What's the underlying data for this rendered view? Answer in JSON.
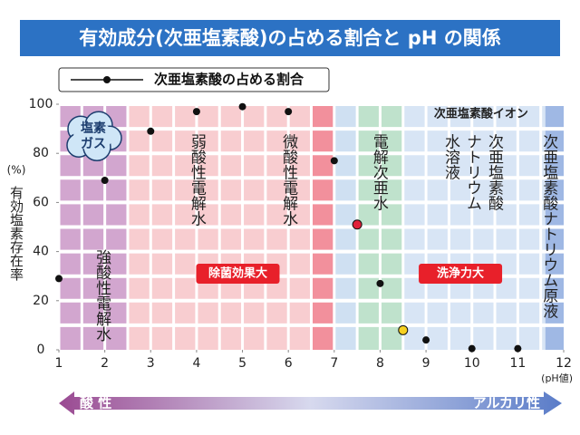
{
  "chart_data": {
    "type": "line",
    "title": "有効成分(次亜塩素酸)の占める割合と pH の関係",
    "legend": "次亜塩素酸の占める割合",
    "x_unit": "(pH値)",
    "y_unit": "(%)",
    "y_label": "有効塩素存在率",
    "xlim": [
      1,
      12
    ],
    "xticks": [
      1,
      2,
      3,
      4,
      5,
      6,
      7,
      8,
      9,
      10,
      11,
      12
    ],
    "ylim": [
      0,
      100
    ],
    "yticks": [
      0,
      20,
      40,
      60,
      80,
      100
    ],
    "series": [
      {
        "name": "次亜塩素酸の占める割合",
        "color": "#111111",
        "x": [
          1,
          2,
          3,
          4,
          5,
          6,
          7,
          7.5,
          8,
          8.5,
          9,
          10,
          11
        ],
        "values": [
          29,
          69,
          89,
          97,
          99,
          97,
          77,
          51,
          27,
          8,
          4,
          0.5,
          0.5
        ],
        "marker_colors": [
          "#111111",
          "#111111",
          "#111111",
          "#111111",
          "#111111",
          "#111111",
          "#111111",
          "#e0203a",
          "#111111",
          "#f5d020",
          "#111111",
          "#111111",
          "#111111"
        ]
      }
    ],
    "bands": [
      {
        "from": 1,
        "to": 2.5,
        "color": "#d2a6cf"
      },
      {
        "from": 2.5,
        "to": 6.5,
        "color": "#f8cdd0"
      },
      {
        "from": 6.5,
        "to": 7,
        "color": "#f2909c"
      },
      {
        "from": 7,
        "to": 7.5,
        "color": "#cfe0f2"
      },
      {
        "from": 7.5,
        "to": 8.5,
        "color": "#bfe2cc"
      },
      {
        "from": 8.5,
        "to": 11.6,
        "color": "#d8e5f5"
      },
      {
        "from": 11.6,
        "to": 12,
        "color": "#9fb8e4"
      }
    ],
    "zone_labels": [
      {
        "x": 1.93,
        "y": 41,
        "lines": [
          "強酸性電解水"
        ]
      },
      {
        "x": 4.0,
        "y": 88,
        "lines": [
          "弱酸性電解水"
        ]
      },
      {
        "x": 6.0,
        "y": 88,
        "lines": [
          "微酸性電解水"
        ]
      },
      {
        "x": 7.97,
        "y": 88,
        "lines": [
          "電解次亜水"
        ]
      },
      {
        "x": 10.48,
        "y": 88,
        "lines": [
          "次亜塩素酸",
          "ナトリウム",
          "水溶液"
        ]
      },
      {
        "x": 11.67,
        "y": 88,
        "lines": [
          "次亜塩素酸ナトリウム原液"
        ]
      }
    ],
    "gas_label": {
      "x": 1.75,
      "y": 87,
      "lines": [
        "塩素",
        "ガス"
      ]
    },
    "badges": [
      {
        "text": "除菌効果大",
        "x": 4.9,
        "y": 31,
        "color": "#e8202a"
      },
      {
        "text": "洗浄力大",
        "x": 9.75,
        "y": 31,
        "color": "#e8202a"
      }
    ],
    "ion_label": {
      "text": "次亜塩素酸イオン",
      "x": 10.2,
      "y": 96
    },
    "acid_label": "酸 性",
    "alkali_label": "アルカリ性"
  }
}
